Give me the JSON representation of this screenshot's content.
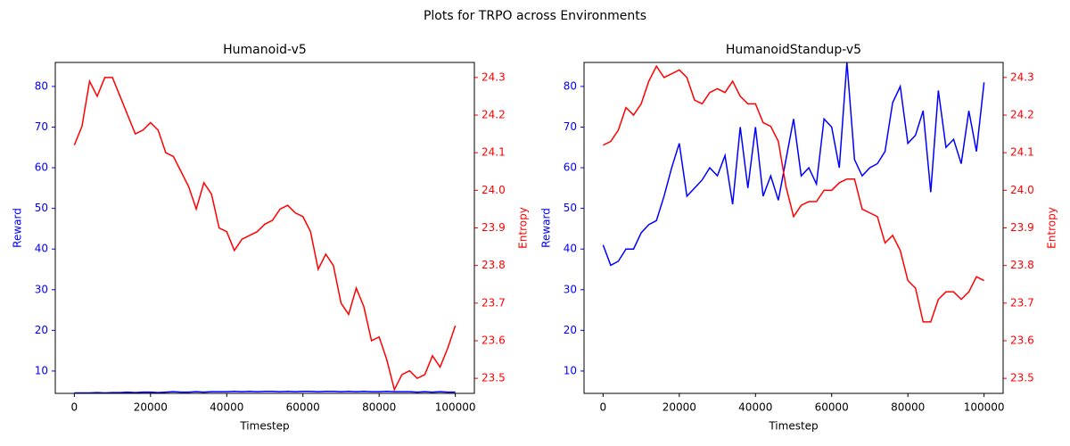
{
  "title": "Plots for TRPO across Environments",
  "chart_data": [
    {
      "type": "line",
      "title": "Humanoid-v5",
      "xlabel": "Timestep",
      "ylabel": "Reward",
      "y2label": "Entropy",
      "x": [
        0,
        2000,
        4000,
        6000,
        8000,
        10000,
        12000,
        14000,
        16000,
        18000,
        20000,
        22000,
        24000,
        26000,
        28000,
        30000,
        32000,
        34000,
        36000,
        38000,
        40000,
        42000,
        44000,
        46000,
        48000,
        50000,
        52000,
        54000,
        56000,
        58000,
        60000,
        62000,
        64000,
        66000,
        68000,
        70000,
        72000,
        74000,
        76000,
        78000,
        80000,
        82000,
        84000,
        86000,
        88000,
        90000,
        92000,
        94000,
        96000,
        98000,
        100000
      ],
      "xlim": [
        -5000,
        105000
      ],
      "xticks": [
        0,
        20000,
        40000,
        60000,
        80000,
        100000
      ],
      "ylim": [
        4.5,
        85.9
      ],
      "yticks": [
        10,
        20,
        30,
        40,
        50,
        60,
        70,
        80
      ],
      "y2lim": [
        23.46,
        24.34
      ],
      "y2ticks": [
        23.5,
        23.6,
        23.7,
        23.8,
        23.9,
        {
          "value": 24,
          "label": "24.0"
        },
        24.1,
        24.2,
        24.3
      ],
      "series": [
        {
          "color": "#0000ff",
          "values": [
            4.6,
            4.6,
            4.6,
            4.7,
            4.6,
            4.7,
            4.7,
            4.8,
            4.7,
            4.8,
            4.8,
            4.7,
            4.8,
            4.9,
            4.8,
            4.8,
            4.9,
            4.8,
            4.9,
            4.9,
            4.9,
            5.0,
            4.9,
            5.0,
            4.9,
            5.0,
            5.0,
            4.9,
            5.0,
            4.9,
            5.0,
            5.0,
            4.9,
            5.0,
            5.0,
            4.9,
            5.0,
            4.9,
            5.0,
            4.9,
            4.9,
            5.0,
            4.9,
            4.9,
            4.9,
            4.8,
            4.9,
            4.8,
            4.9,
            4.8,
            4.8
          ]
        },
        {
          "color": "#ff0000",
          "axis": "y2",
          "values": [
            24.12,
            24.17,
            24.29,
            24.25,
            24.3,
            24.3,
            24.25,
            24.2,
            24.15,
            24.16,
            24.18,
            24.16,
            24.1,
            24.09,
            24.05,
            24.01,
            23.95,
            24.02,
            23.99,
            23.9,
            23.89,
            23.84,
            23.87,
            23.88,
            23.89,
            23.91,
            23.92,
            23.95,
            23.96,
            23.94,
            23.93,
            23.89,
            23.79,
            23.83,
            23.8,
            23.7,
            23.67,
            23.74,
            23.69,
            23.6,
            23.61,
            23.55,
            23.47,
            23.51,
            23.52,
            23.5,
            23.51,
            23.56,
            23.53,
            23.58,
            23.64
          ]
        }
      ]
    },
    {
      "type": "line",
      "title": "HumanoidStandup-v5",
      "xlabel": "Timestep",
      "ylabel": "Reward",
      "y2label": "Entropy",
      "x": [
        0,
        2000,
        4000,
        6000,
        8000,
        10000,
        12000,
        14000,
        16000,
        18000,
        20000,
        22000,
        24000,
        26000,
        28000,
        30000,
        32000,
        34000,
        36000,
        38000,
        40000,
        42000,
        44000,
        46000,
        48000,
        50000,
        52000,
        54000,
        56000,
        58000,
        60000,
        62000,
        64000,
        66000,
        68000,
        70000,
        72000,
        74000,
        76000,
        78000,
        80000,
        82000,
        84000,
        86000,
        88000,
        90000,
        92000,
        94000,
        96000,
        98000,
        100000
      ],
      "xlim": [
        -5000,
        105000
      ],
      "xticks": [
        0,
        20000,
        40000,
        60000,
        80000,
        100000
      ],
      "ylim": [
        4.5,
        85.9
      ],
      "yticks": [
        10,
        20,
        30,
        40,
        50,
        60,
        70,
        80
      ],
      "y2lim": [
        23.46,
        24.34
      ],
      "y2ticks": [
        23.5,
        23.6,
        23.7,
        23.8,
        23.9,
        {
          "value": 24,
          "label": "24.0"
        },
        24.1,
        24.2,
        24.3
      ],
      "series": [
        {
          "color": "#0000ff",
          "values": [
            41,
            36,
            37,
            40,
            40,
            44,
            46,
            47,
            53,
            60,
            66,
            53,
            55,
            57,
            60,
            58,
            63,
            51,
            70,
            55,
            70,
            53,
            58,
            52,
            62,
            72,
            58,
            60,
            56,
            72,
            70,
            60,
            86,
            62,
            58,
            60,
            61,
            64,
            76,
            80,
            66,
            68,
            74,
            54,
            79,
            65,
            67,
            61,
            74,
            64,
            81
          ]
        },
        {
          "color": "#ff0000",
          "axis": "y2",
          "values": [
            24.12,
            24.13,
            24.16,
            24.22,
            24.2,
            24.23,
            24.29,
            24.33,
            24.3,
            24.31,
            24.32,
            24.3,
            24.24,
            24.23,
            24.26,
            24.27,
            24.26,
            24.29,
            24.25,
            24.23,
            24.23,
            24.18,
            24.17,
            24.13,
            24.01,
            23.93,
            23.96,
            23.97,
            23.97,
            24.0,
            24.0,
            24.02,
            24.03,
            24.03,
            23.95,
            23.94,
            23.93,
            23.86,
            23.88,
            23.84,
            23.76,
            23.74,
            23.65,
            23.65,
            23.71,
            23.73,
            23.73,
            23.71,
            23.73,
            23.77,
            23.76
          ]
        }
      ]
    }
  ]
}
